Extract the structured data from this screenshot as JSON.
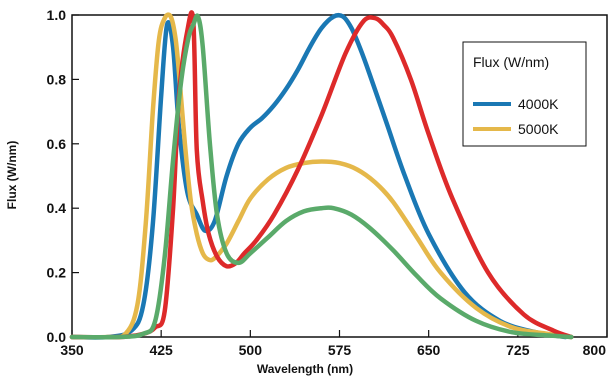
{
  "chart_data": {
    "type": "line",
    "title": "",
    "xlabel": "Wavelength (nm)",
    "ylabel": "Flux (W/nm)",
    "xlim": [
      350,
      800
    ],
    "ylim": [
      0.0,
      1.0
    ],
    "xticks": [
      "350",
      "425",
      "500",
      "575",
      "650",
      "725",
      "800"
    ],
    "yticks": [
      "0.0",
      "0.2",
      "0.4",
      "0.6",
      "0.8",
      "1.0"
    ],
    "grid": false,
    "legend": {
      "title": "Flux (W/nm)",
      "position": "top-right",
      "entries": [
        {
          "name": "4000K",
          "color": "#1a78b4"
        },
        {
          "name": "5000K",
          "color": "#e5b84a"
        }
      ]
    },
    "series": [
      {
        "name": "4000K",
        "color": "#1a78b4",
        "x": [
          350,
          380,
          400,
          410,
          418,
          425,
          430,
          435,
          440,
          447,
          455,
          462,
          470,
          480,
          490,
          500,
          510,
          520,
          530,
          540,
          550,
          560,
          570,
          578,
          585,
          592,
          600,
          615,
          630,
          650,
          680,
          710,
          740,
          765
        ],
        "y": [
          0.0,
          0.0,
          0.02,
          0.1,
          0.35,
          0.75,
          0.97,
          0.9,
          0.65,
          0.45,
          0.38,
          0.33,
          0.36,
          0.5,
          0.6,
          0.65,
          0.68,
          0.72,
          0.77,
          0.83,
          0.9,
          0.96,
          0.995,
          0.995,
          0.96,
          0.9,
          0.82,
          0.66,
          0.5,
          0.32,
          0.14,
          0.05,
          0.015,
          0.0
        ]
      },
      {
        "name": "5000K",
        "color": "#e5b84a",
        "x": [
          350,
          380,
          395,
          405,
          412,
          418,
          423,
          428,
          433,
          437,
          440,
          445,
          450,
          455,
          460,
          465,
          470,
          480,
          490,
          500,
          515,
          530,
          545,
          560,
          575,
          590,
          605,
          620,
          640,
          660,
          690,
          720,
          750,
          770
        ],
        "y": [
          0.0,
          0.0,
          0.01,
          0.1,
          0.35,
          0.7,
          0.92,
          0.99,
          0.995,
          0.93,
          0.82,
          0.6,
          0.42,
          0.32,
          0.26,
          0.24,
          0.245,
          0.29,
          0.36,
          0.43,
          0.49,
          0.525,
          0.54,
          0.545,
          0.54,
          0.52,
          0.48,
          0.42,
          0.31,
          0.2,
          0.09,
          0.03,
          0.01,
          0.0
        ]
      },
      {
        "name": "",
        "color": "#dd2a2a",
        "x": [
          350,
          390,
          410,
          420,
          428,
          435,
          440,
          447,
          452,
          455,
          460,
          465,
          472,
          480,
          488,
          495,
          505,
          520,
          540,
          560,
          580,
          595,
          605,
          612,
          620,
          635,
          650,
          670,
          700,
          730,
          755,
          770
        ],
        "y": [
          0.0,
          0.0,
          0.01,
          0.03,
          0.08,
          0.4,
          0.75,
          0.95,
          0.98,
          0.58,
          0.42,
          0.32,
          0.25,
          0.22,
          0.23,
          0.26,
          0.3,
          0.38,
          0.52,
          0.69,
          0.88,
          0.98,
          0.99,
          0.97,
          0.93,
          0.8,
          0.63,
          0.43,
          0.2,
          0.07,
          0.02,
          0.0
        ]
      },
      {
        "name": "",
        "color": "#5aaa6a",
        "x": [
          350,
          390,
          410,
          420,
          428,
          435,
          442,
          448,
          452,
          456,
          460,
          466,
          472,
          480,
          490,
          500,
          515,
          530,
          545,
          560,
          570,
          585,
          600,
          620,
          640,
          660,
          690,
          720,
          750,
          770
        ],
        "y": [
          0.0,
          0.0,
          0.01,
          0.05,
          0.25,
          0.55,
          0.8,
          0.93,
          0.97,
          0.995,
          0.9,
          0.6,
          0.38,
          0.26,
          0.23,
          0.26,
          0.31,
          0.36,
          0.39,
          0.4,
          0.4,
          0.38,
          0.34,
          0.27,
          0.19,
          0.12,
          0.05,
          0.015,
          0.005,
          0.0
        ]
      }
    ]
  }
}
